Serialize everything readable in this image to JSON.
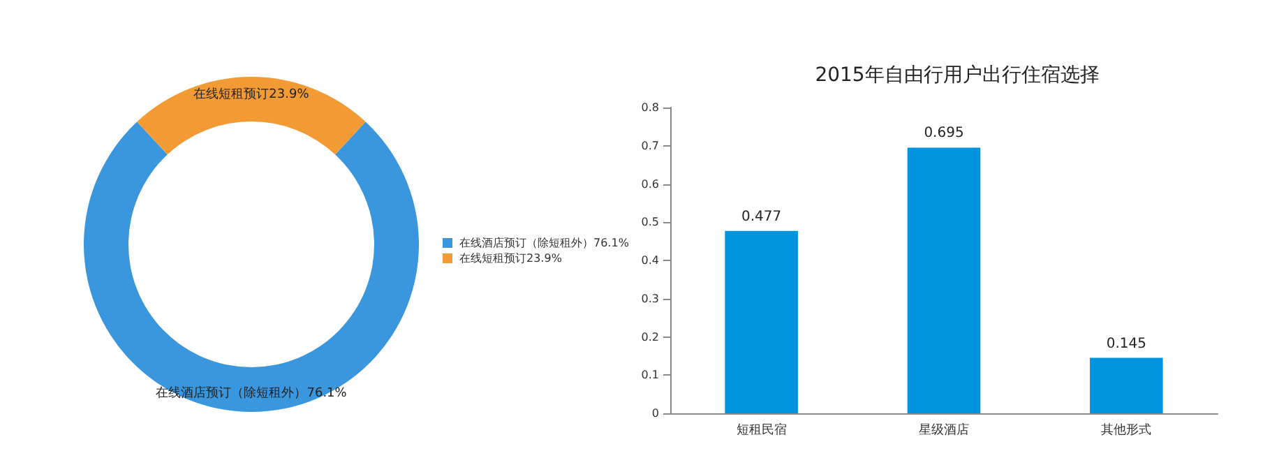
{
  "chart_data": [
    {
      "type": "donut",
      "categories": [
        "在线酒店预订（除短租外）76.1%",
        "在线短租预订23.9%"
      ],
      "values": [
        76.1,
        23.9
      ],
      "colors": [
        "#3a96dd",
        "#f29b34"
      ],
      "legend": "right"
    },
    {
      "type": "bar",
      "title": "2015年自由行用户出行住宿选择",
      "categories": [
        "短租民宿",
        "星级酒店",
        "其他形式"
      ],
      "values": [
        0.477,
        0.695,
        0.145
      ],
      "color": "#0095de",
      "ylim": [
        0,
        0.8
      ],
      "yticks": [
        0,
        0.1,
        0.2,
        0.3,
        0.4,
        0.5,
        0.6,
        0.7,
        0.8
      ],
      "data_labels": true,
      "grid": false,
      "legend": false
    }
  ]
}
